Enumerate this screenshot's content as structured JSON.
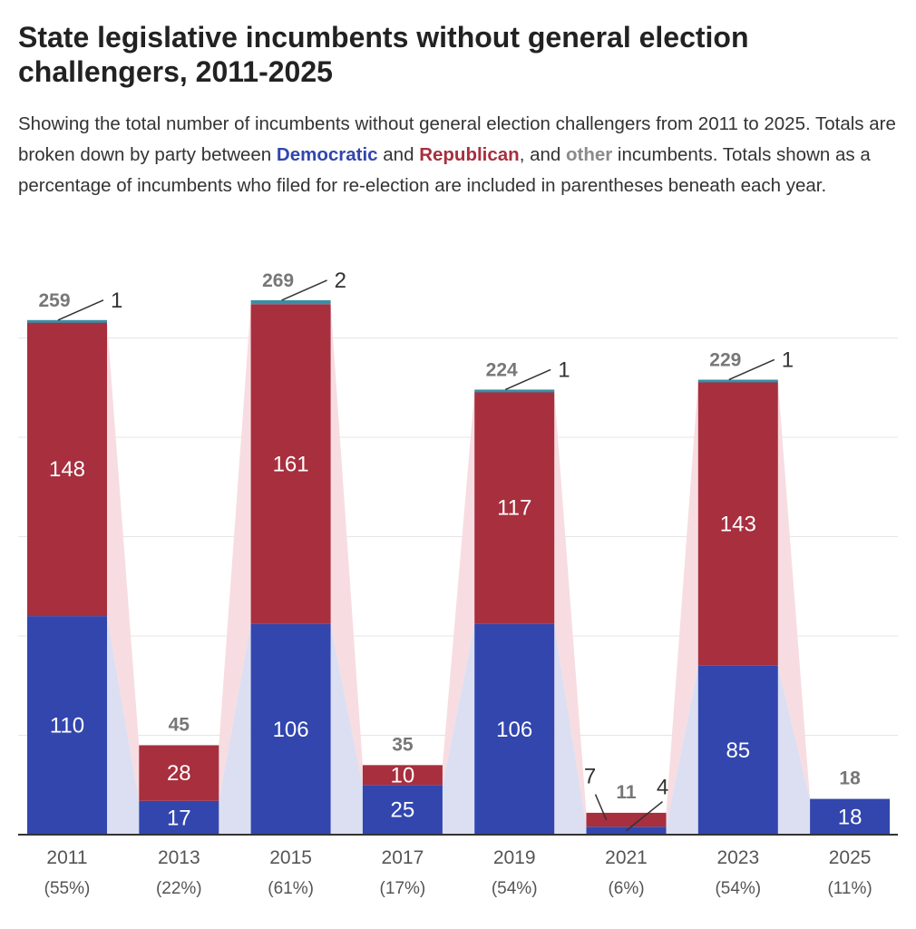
{
  "title": "State legislative incumbents without general election challengers, 2011-2025",
  "subtitle": {
    "part1": "Showing the total number of incumbents without general election challengers from 2011 to 2025. Totals are broken down by party between ",
    "dem": "Democratic",
    "part2": " and ",
    "rep": "Republican",
    "part3": ", and ",
    "oth": "other",
    "part4": " incumbents. Totals shown as a percentage of incumbents who filed for re-election are included in parentheses beneath each year."
  },
  "colors": {
    "democratic": "#3246AE",
    "republican": "#A72F3E",
    "other": "#3A8EA5",
    "dem_band": "#DCDFF1",
    "rep_band": "#F7DDE1",
    "grid": "#E6E6E6",
    "axis": "#333333"
  },
  "chart_data": {
    "type": "bar",
    "stacked": true,
    "categories": [
      "2011",
      "2013",
      "2015",
      "2017",
      "2019",
      "2021",
      "2023",
      "2025"
    ],
    "percent_labels": [
      "(55%)",
      "(22%)",
      "(61%)",
      "(17%)",
      "(54%)",
      "(6%)",
      "(54%)",
      "(11%)"
    ],
    "series": [
      {
        "name": "Democratic",
        "values": [
          110,
          17,
          106,
          25,
          106,
          4,
          85,
          18
        ],
        "labels": [
          "110",
          "17",
          "106",
          "25",
          "106",
          "4",
          "85",
          "18"
        ]
      },
      {
        "name": "Republican",
        "values": [
          148,
          28,
          161,
          10,
          117,
          7,
          143,
          0
        ],
        "labels": [
          "148",
          "28",
          "161",
          "10",
          "117",
          "7",
          "143",
          ""
        ]
      },
      {
        "name": "other",
        "values": [
          1,
          0,
          2,
          0,
          1,
          0,
          1,
          0
        ],
        "labels": [
          "1",
          "",
          "2",
          "",
          "1",
          "",
          "1",
          ""
        ]
      }
    ],
    "totals": [
      "259",
      "45",
      "269",
      "35",
      "224",
      "11",
      "229",
      "18"
    ],
    "ylim": [
      0,
      270
    ],
    "grid": true,
    "xlabel": "",
    "ylabel": ""
  }
}
